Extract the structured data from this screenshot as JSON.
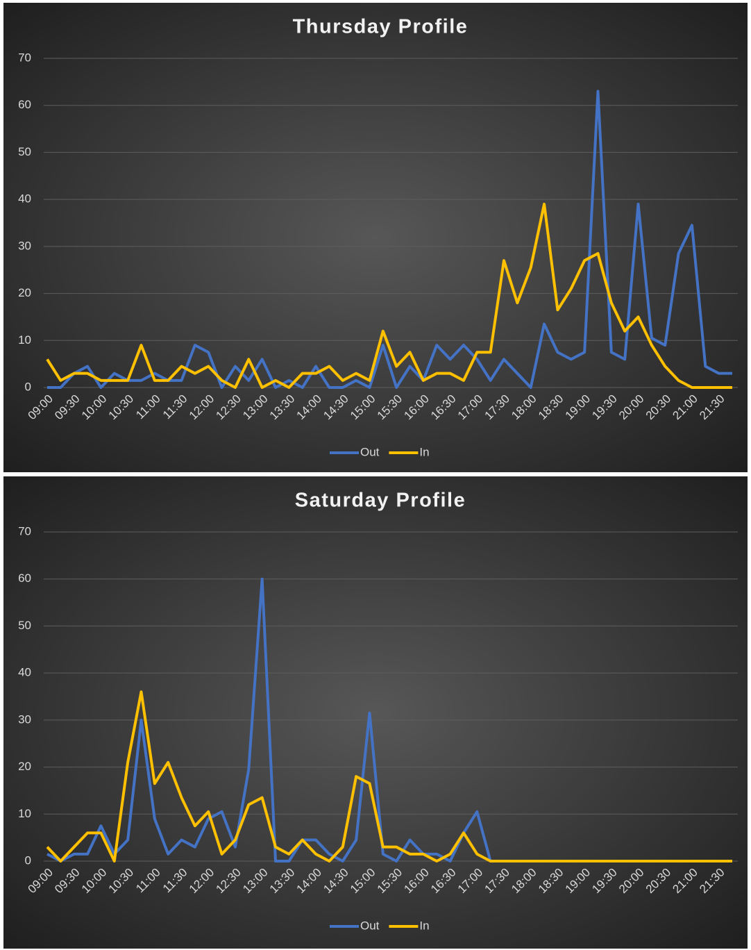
{
  "chart_data": [
    {
      "type": "line",
      "title": "Thursday Profile",
      "categories": [
        "09:00",
        null,
        "09:30",
        null,
        "10:00",
        null,
        "10:30",
        null,
        "11:00",
        null,
        "11:30",
        null,
        "12:00",
        null,
        "12:30",
        null,
        "13:00",
        null,
        "13:30",
        null,
        "14:00",
        null,
        "14:30",
        null,
        "15:00",
        null,
        "15:30",
        null,
        "16:00",
        null,
        "16:30",
        null,
        "17:00",
        null,
        "17:30",
        null,
        "18:00",
        null,
        "18:30",
        null,
        "19:00",
        null,
        "19:30",
        null,
        "20:00",
        null,
        "20:30",
        null,
        "21:00",
        null,
        "21:30",
        null
      ],
      "series": [
        {
          "name": "Out",
          "color": "#4472c4",
          "values": [
            0,
            0,
            3,
            4.5,
            0,
            3,
            1.5,
            1.5,
            3,
            1.5,
            1.5,
            9,
            7.5,
            0,
            4.5,
            1.5,
            6,
            0,
            1.5,
            0,
            4.5,
            0,
            0,
            1.5,
            0,
            9,
            0,
            4.5,
            1.5,
            9,
            6,
            9,
            6,
            1.5,
            6,
            3,
            0,
            13.5,
            7.5,
            6,
            7.5,
            63,
            7.5,
            6,
            39,
            10.5,
            9,
            28.5,
            34.5,
            4.5,
            3,
            3
          ]
        },
        {
          "name": "In",
          "color": "#ffc000",
          "values": [
            6,
            1.5,
            3,
            3,
            1.5,
            1.5,
            1.5,
            9,
            1.5,
            1.5,
            4.5,
            3,
            4.5,
            1.5,
            0,
            6,
            0,
            1.5,
            0,
            3,
            3,
            4.5,
            1.5,
            3,
            1.5,
            12,
            4.5,
            7.5,
            1.5,
            3,
            3,
            1.5,
            7.5,
            7.5,
            27,
            18,
            25.5,
            39,
            16.5,
            21,
            27,
            28.5,
            18,
            12,
            15,
            9,
            4.5,
            1.5,
            0,
            0,
            0,
            0
          ]
        }
      ],
      "ylim": [
        0,
        70
      ],
      "yticks": [
        0,
        10,
        20,
        30,
        40,
        50,
        60,
        70
      ],
      "grid": true,
      "legend": "bottom"
    },
    {
      "type": "line",
      "title": "Saturday Profile",
      "categories": [
        "09:00",
        null,
        "09:30",
        null,
        "10:00",
        null,
        "10:30",
        null,
        "11:00",
        null,
        "11:30",
        null,
        "12:00",
        null,
        "12:30",
        null,
        "13:00",
        null,
        "13:30",
        null,
        "14:00",
        null,
        "14:30",
        null,
        "15:00",
        null,
        "15:30",
        null,
        "16:00",
        null,
        "16:30",
        null,
        "17:00",
        null,
        "17:30",
        null,
        "18:00",
        null,
        "18:30",
        null,
        "19:00",
        null,
        "19:30",
        null,
        "20:00",
        null,
        "20:30",
        null,
        "21:00",
        null,
        "21:30",
        null
      ],
      "series": [
        {
          "name": "Out",
          "color": "#4472c4",
          "values": [
            1.5,
            0,
            1.5,
            1.5,
            7.5,
            1.5,
            4.5,
            30,
            9,
            1.5,
            4.5,
            3,
            9,
            10.5,
            3,
            19.5,
            60,
            0,
            0,
            4.5,
            4.5,
            1.5,
            0,
            4.5,
            31.5,
            1.5,
            0,
            4.5,
            1.5,
            1.5,
            0,
            6,
            10.5,
            0,
            0,
            0,
            0,
            0,
            0,
            0,
            0,
            0,
            0,
            0,
            0,
            0,
            0,
            0,
            0,
            0,
            0,
            0
          ]
        },
        {
          "name": "In",
          "color": "#ffc000",
          "values": [
            3,
            0,
            3,
            6,
            6,
            0,
            21,
            36,
            16.5,
            21,
            13.5,
            7.5,
            10.5,
            1.5,
            4.5,
            12,
            13.5,
            3,
            1.5,
            4.5,
            1.5,
            0,
            3,
            18,
            16.5,
            3,
            3,
            1.5,
            1.5,
            0,
            1.5,
            6,
            1.5,
            0,
            0,
            0,
            0,
            0,
            0,
            0,
            0,
            0,
            0,
            0,
            0,
            0,
            0,
            0,
            0,
            0,
            0,
            0
          ]
        }
      ],
      "ylim": [
        0,
        70
      ],
      "yticks": [
        0,
        10,
        20,
        30,
        40,
        50,
        60,
        70
      ],
      "grid": true,
      "legend": "bottom"
    }
  ]
}
